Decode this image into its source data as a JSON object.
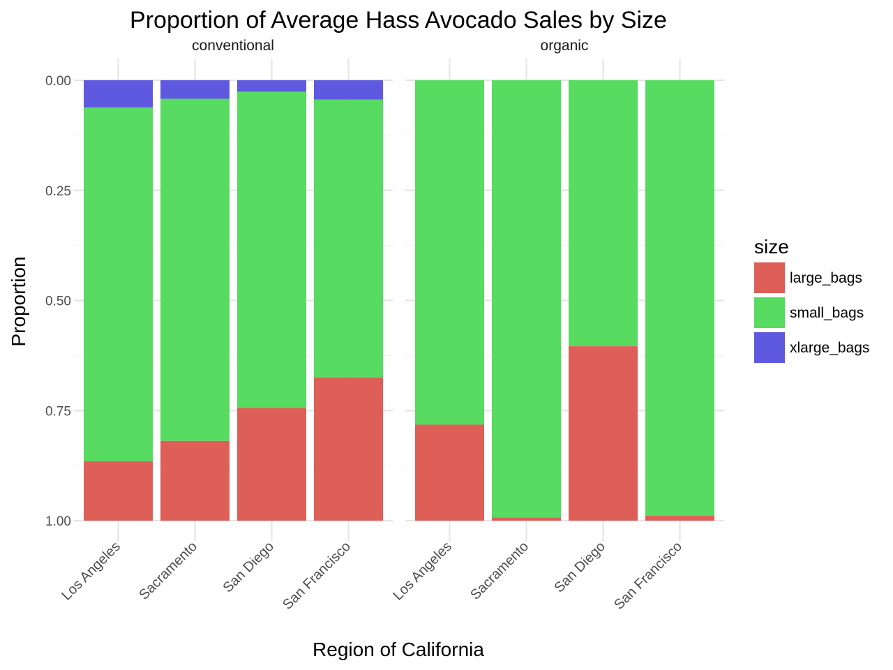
{
  "chart_data": {
    "type": "bar",
    "stacked": true,
    "title": "Proportion of Average Hass Avocado Sales by Size",
    "xlabel": "Region of California",
    "ylabel": "Proportion",
    "ylim": [
      0,
      1
    ],
    "y_reversed": true,
    "y_ticks": [
      "0.00",
      "0.25",
      "0.50",
      "0.75",
      "1.00"
    ],
    "grid": true,
    "legend": {
      "title": "size",
      "placement": "right",
      "entries": [
        "large_bags",
        "small_bags",
        "xlarge_bags"
      ]
    },
    "colors": {
      "large_bags": "#de5f58",
      "small_bags": "#57db61",
      "xlarge_bags": "#5f59df"
    },
    "panels": [
      {
        "name": "conventional",
        "categories": [
          "Los Angeles",
          "Sacramento",
          "San Diego",
          "San Francisco"
        ],
        "series": [
          {
            "name": "xlarge_bags",
            "values": [
              0.062,
              0.042,
              0.026,
              0.044
            ]
          },
          {
            "name": "small_bags",
            "values": [
              0.803,
              0.777,
              0.718,
              0.631
            ]
          },
          {
            "name": "large_bags",
            "values": [
              0.135,
              0.181,
              0.256,
              0.325
            ]
          }
        ]
      },
      {
        "name": "organic",
        "categories": [
          "Los Angeles",
          "Sacramento",
          "San Diego",
          "San Francisco"
        ],
        "series": [
          {
            "name": "xlarge_bags",
            "values": [
              0.0,
              0.0,
              0.0,
              0.0
            ]
          },
          {
            "name": "small_bags",
            "values": [
              0.782,
              0.993,
              0.604,
              0.989
            ]
          },
          {
            "name": "large_bags",
            "values": [
              0.218,
              0.007,
              0.396,
              0.011
            ]
          }
        ]
      }
    ]
  }
}
